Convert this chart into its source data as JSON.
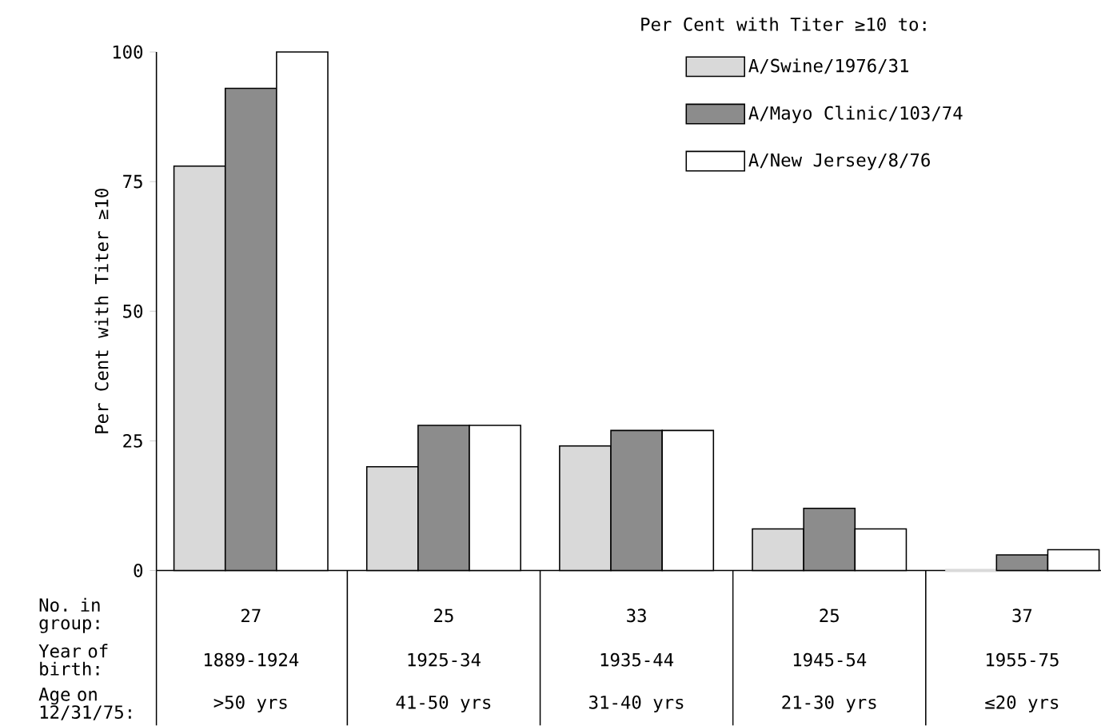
{
  "chart_data": {
    "type": "bar",
    "ylabel": "Per Cent with Titer ≥10",
    "legend_title": "Per Cent with Titer ≥10 to:",
    "categories": [
      "1889-1924",
      "1925-34",
      "1935-44",
      "1945-54",
      "1955-75"
    ],
    "series": [
      {
        "name": "A/Swine/1976/31",
        "color": "#d9d9d9",
        "values": [
          78,
          20,
          24,
          8,
          0
        ]
      },
      {
        "name": "A/Mayo Clinic/103/74",
        "color": "#8c8c8c",
        "values": [
          93,
          28,
          27,
          12,
          3
        ]
      },
      {
        "name": "A/New Jersey/8/76",
        "color": "#ffffff",
        "values": [
          100,
          28,
          27,
          8,
          4
        ]
      }
    ],
    "ylim": [
      0,
      100
    ],
    "yticks": [
      0,
      25,
      50,
      75,
      100
    ],
    "legend": "top right",
    "annotations": [
      "No. in group:",
      "Year of birth:",
      "Age on 12/31/75:",
      "27",
      "25",
      "33",
      "25",
      "37",
      ">50 yrs",
      "41-50 yrs",
      "31-40 yrs",
      "21-30 yrs",
      "≤20 yrs"
    ]
  }
}
